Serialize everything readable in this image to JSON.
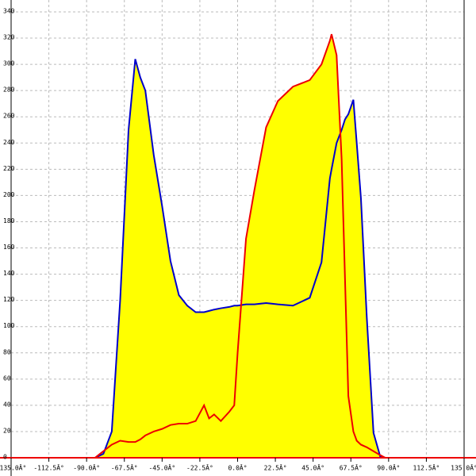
{
  "chart_data": {
    "type": "area",
    "x": [
      -90,
      -85,
      -80,
      -75,
      -70,
      -65,
      -61,
      -58,
      -55,
      -50,
      -45,
      -40,
      -35,
      -30,
      -25,
      -20,
      -17,
      -14,
      -10,
      -5,
      -2,
      0,
      5,
      10,
      17,
      24,
      33,
      43,
      50,
      55,
      56,
      59,
      62,
      64,
      66,
      69,
      71,
      73.5,
      77,
      81,
      85,
      88,
      90,
      95
    ],
    "series": [
      {
        "color": "#0000cc",
        "fill": "#ffff00",
        "values": [
          0,
          0,
          3,
          20,
          120,
          250,
          304,
          290,
          280,
          231,
          192,
          150,
          124,
          116,
          111,
          111,
          112,
          113,
          114,
          115,
          116,
          116,
          117,
          117,
          118,
          117,
          116,
          122,
          149,
          213,
          220,
          240,
          250,
          258,
          262,
          273,
          240,
          198,
          107,
          19,
          1,
          0,
          0,
          0
        ]
      },
      {
        "color": "#ee0000",
        "fill": "#ffff00",
        "values": [
          0,
          0,
          5,
          10,
          13,
          12,
          12,
          14,
          17,
          20,
          22,
          25,
          26,
          26,
          28,
          40,
          30,
          33,
          28,
          35,
          40,
          80,
          167,
          204,
          252,
          272,
          283,
          288,
          300,
          318,
          323,
          307,
          228,
          137,
          47,
          20,
          13,
          10,
          8,
          5,
          2,
          0,
          0,
          0
        ]
      }
    ],
    "xlim": [
      -135,
      135
    ],
    "xticks": [
      {
        "value": -135,
        "label": "-135.0Â°"
      },
      {
        "value": -112.5,
        "label": "-112.5Â°"
      },
      {
        "value": -90,
        "label": "-90.0Â°"
      },
      {
        "value": -67.5,
        "label": "-67.5Â°"
      },
      {
        "value": -45,
        "label": "-45.0Â°"
      },
      {
        "value": -22.5,
        "label": "-22.5Â°"
      },
      {
        "value": 0,
        "label": "0.0Â°"
      },
      {
        "value": 22.5,
        "label": "22.5Â°"
      },
      {
        "value": 45,
        "label": "45.0Â°"
      },
      {
        "value": 67.5,
        "label": "67.5Â°"
      },
      {
        "value": 90,
        "label": "90.0Â°"
      },
      {
        "value": 112.5,
        "label": "112.5Â°"
      },
      {
        "value": 135,
        "label": "135.0Â°"
      }
    ],
    "ylim": [
      0,
      340
    ],
    "yticks": [
      0,
      20,
      40,
      60,
      80,
      100,
      120,
      140,
      160,
      180,
      200,
      220,
      240,
      260,
      280,
      300,
      320,
      340
    ],
    "grid": true
  }
}
